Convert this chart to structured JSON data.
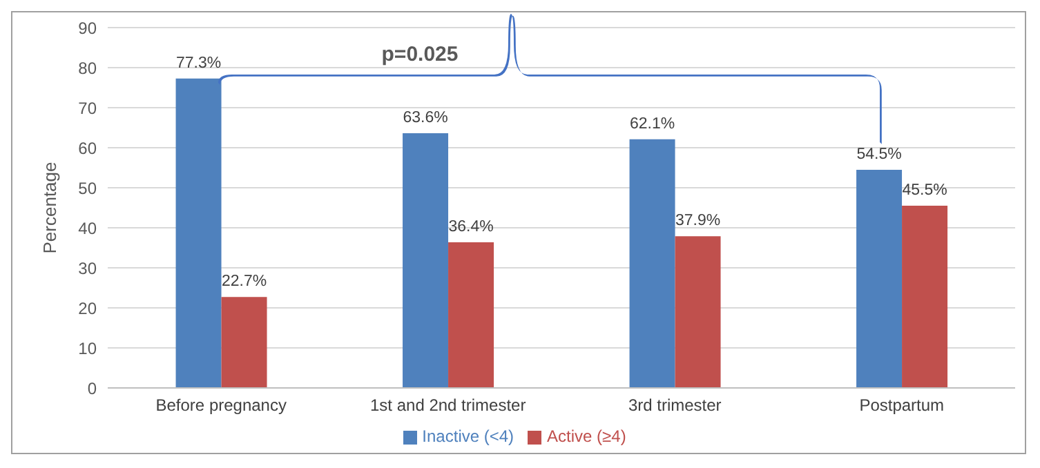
{
  "chart_data": {
    "type": "bar",
    "ylabel": "Percentage",
    "categories": [
      "Before pregnancy",
      "1st and 2nd trimester",
      "3rd trimester",
      "Postpartum"
    ],
    "series": [
      {
        "name": "Inactive (<4)",
        "color": "#4f81bd",
        "values": [
          77.3,
          63.6,
          62.1,
          54.5
        ],
        "value_labels": [
          "77.3%",
          "63.6%",
          "62.1%",
          "54.5%"
        ]
      },
      {
        "name": "Active (≥4)",
        "color": "#c0504d",
        "values": [
          22.7,
          36.4,
          37.9,
          45.5
        ],
        "value_labels": [
          "22.7%",
          "36.4%",
          "37.9%",
          "45.5%"
        ]
      }
    ],
    "ylim": [
      0,
      90
    ],
    "yticks": [
      0,
      10,
      20,
      30,
      40,
      50,
      60,
      70,
      80,
      90
    ],
    "grid": "y",
    "legend": "bottom",
    "annotations": [
      "p=0.025"
    ]
  }
}
